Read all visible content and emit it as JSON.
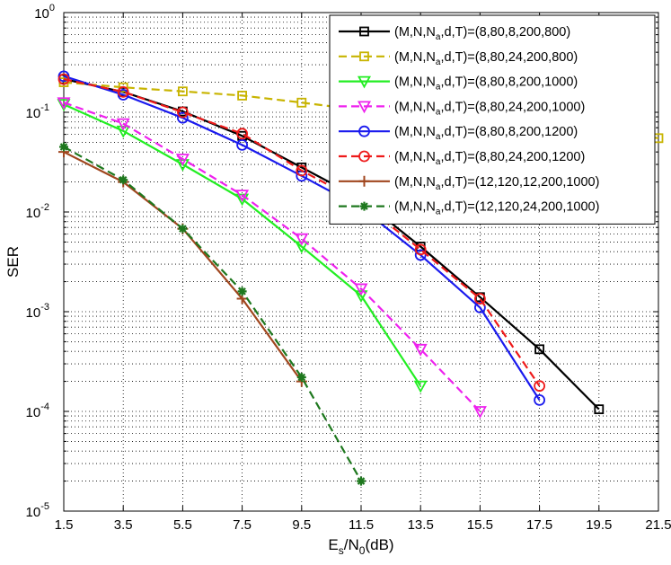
{
  "chart_data": {
    "type": "line",
    "title": "",
    "xlabel": "E",
    "xlabel_sub1": "s",
    "xlabel_mid": "/N",
    "xlabel_sub2": "0",
    "xlabel_tail": "(dB)",
    "ylabel": "SER",
    "x_scale": "linear",
    "y_scale": "log",
    "xlim": [
      1.5,
      21.5
    ],
    "ylim": [
      1e-05,
      1
    ],
    "xticks": [
      "1.5",
      "3.5",
      "5.5",
      "7.5",
      "9.5",
      "11.5",
      "13.5",
      "15.5",
      "17.5",
      "19.5",
      "21.5"
    ],
    "yticks": [
      {
        "base": "10",
        "exp": "0",
        "value": 1
      },
      {
        "base": "10",
        "exp": "-1",
        "value": 0.1
      },
      {
        "base": "10",
        "exp": "-2",
        "value": 0.01
      },
      {
        "base": "10",
        "exp": "-3",
        "value": 0.001
      },
      {
        "base": "10",
        "exp": "-4",
        "value": 0.0001
      },
      {
        "base": "10",
        "exp": "-5",
        "value": 1e-05
      }
    ],
    "grid": true,
    "legend_position": "top-right",
    "series": [
      {
        "name": "(M,N,N_a,d,T)=(8,80,8,200,800)",
        "label_pre": "(M,N,N",
        "label_sub": "a",
        "label_post": ",d,T)=(8,80,8,200,800)",
        "color": "#000000",
        "dash": "solid",
        "marker": "square",
        "x": [
          1.5,
          3.5,
          5.5,
          7.5,
          9.5,
          11.5,
          13.5,
          15.5,
          17.5,
          19.5
        ],
        "y": [
          0.215,
          0.16,
          0.102,
          0.058,
          0.028,
          0.0135,
          0.0045,
          0.0014,
          0.00042,
          0.000105
        ]
      },
      {
        "name": "(M,N,N_a,d,T)=(8,80,24,200,800)",
        "label_pre": "(M,N,N",
        "label_sub": "a",
        "label_post": ",d,T)=(8,80,24,200,800)",
        "color": "#c8b400",
        "dash": "dashed",
        "marker": "square",
        "x": [
          1.5,
          3.5,
          5.5,
          7.5,
          9.5,
          11.5,
          13.5,
          15.5,
          17.5,
          19.5,
          21.5
        ],
        "y": [
          0.2,
          0.178,
          0.162,
          0.147,
          0.125,
          0.105,
          0.095,
          0.085,
          0.075,
          0.065,
          0.055
        ]
      },
      {
        "name": "(M,N,N_a,d,T)=(8,80,8,200,1000)",
        "label_pre": "(M,N,N",
        "label_sub": "a",
        "label_post": ",d,T)=(8,80,8,200,1000)",
        "color": "#22ee22",
        "dash": "solid",
        "marker": "triangle-down",
        "x": [
          1.5,
          3.5,
          5.5,
          7.5,
          9.5,
          11.5,
          13.5
        ],
        "y": [
          0.12,
          0.065,
          0.03,
          0.0135,
          0.0045,
          0.00145,
          0.00018
        ]
      },
      {
        "name": "(M,N,N_a,d,T)=(8,80,24,200,1000)",
        "label_pre": "(M,N,N",
        "label_sub": "a",
        "label_post": ",d,T)=(8,80,24,200,1000)",
        "color": "#ee22ee",
        "dash": "dashed",
        "marker": "triangle-down",
        "x": [
          1.5,
          3.5,
          5.5,
          7.5,
          9.5,
          11.5,
          13.5,
          15.5
        ],
        "y": [
          0.125,
          0.077,
          0.034,
          0.0148,
          0.0054,
          0.0017,
          0.00042,
          0.0001
        ]
      },
      {
        "name": "(M,N,N_a,d,T)=(8,80,8,200,1200)",
        "label_pre": "(M,N,N",
        "label_sub": "a",
        "label_post": ",d,T)=(8,80,8,200,1200)",
        "color": "#1a1aee",
        "dash": "solid",
        "marker": "circle",
        "x": [
          1.5,
          3.5,
          5.5,
          7.5,
          9.5,
          11.5,
          13.5,
          15.5,
          17.5
        ],
        "y": [
          0.23,
          0.15,
          0.088,
          0.047,
          0.023,
          0.011,
          0.0037,
          0.0011,
          0.00013
        ]
      },
      {
        "name": "(M,N,N_a,d,T)=(8,80,24,200,1200)",
        "label_pre": "(M,N,N",
        "label_sub": "a",
        "label_post": ",d,T)=(8,80,24,200,1200)",
        "color": "#ee1a1a",
        "dash": "dashed",
        "marker": "circle",
        "x": [
          1.5,
          3.5,
          5.5,
          7.5,
          9.5,
          11.5,
          13.5,
          15.5,
          17.5
        ],
        "y": [
          0.215,
          0.16,
          0.1,
          0.061,
          0.026,
          0.0125,
          0.0042,
          0.00135,
          0.00018
        ]
      },
      {
        "name": "(M,N,N_a,d,T)=(12,120,12,200,1000)",
        "label_pre": "(M,N,N",
        "label_sub": "a",
        "label_post": ",d,T)=(12,120,12,200,1000)",
        "color": "#a0461e",
        "dash": "solid",
        "marker": "plus",
        "x": [
          1.5,
          3.5,
          5.5,
          7.5,
          9.5
        ],
        "y": [
          0.04,
          0.02,
          0.0068,
          0.00135,
          0.0002
        ]
      },
      {
        "name": "(M,N,N_a,d,T)=(12,120,24,200,1000)",
        "label_pre": "(M,N,N",
        "label_sub": "a",
        "label_post": ",d,T)=(12,120,24,200,1000)",
        "color": "#1e781e",
        "dash": "dashed",
        "marker": "star",
        "x": [
          1.5,
          3.5,
          5.5,
          7.5,
          9.5,
          11.5
        ],
        "y": [
          0.045,
          0.021,
          0.0068,
          0.0016,
          0.00022,
          2e-05
        ]
      }
    ]
  }
}
